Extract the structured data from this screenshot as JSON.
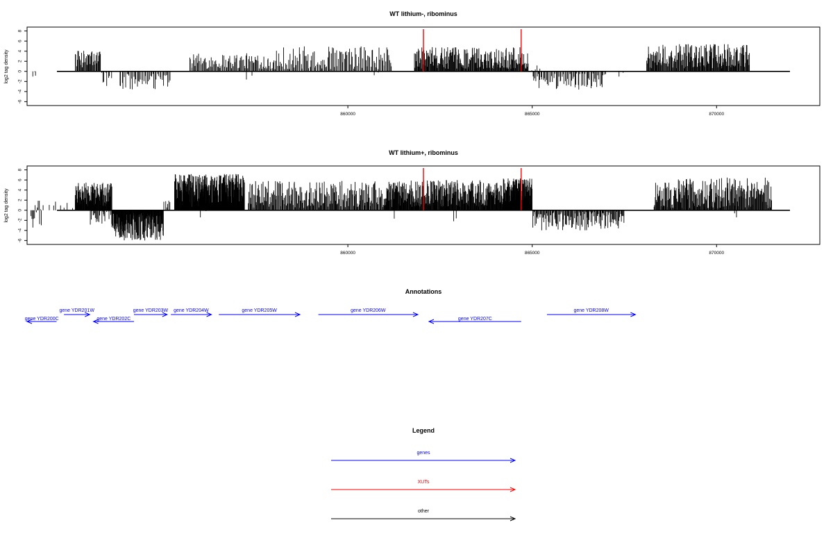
{
  "chart_data": [
    {
      "type": "bar",
      "title": "WT lithium-, ribominus",
      "xlabel": "",
      "ylabel": "log2 tag density",
      "xlim": [
        851300,
        872800
      ],
      "ylim": [
        -6.5,
        8.5
      ],
      "yticks": [
        -6,
        -4,
        -2,
        0,
        2,
        4,
        6,
        8
      ],
      "xticks": [
        860000,
        865000,
        870000
      ],
      "xtick_labels": [
        "860000",
        "865000",
        "870000"
      ],
      "marker_positions": [
        862050,
        864700
      ],
      "marker_color": "#ff0000",
      "bar_color": "#000000",
      "segments": [
        {
          "start": 851400,
          "end": 851550,
          "min": -1.8,
          "max": 0,
          "n": 4,
          "density": 0.5
        },
        {
          "start": 852600,
          "end": 853300,
          "min": 0.8,
          "max": 4.2,
          "n": 40,
          "density": 0.65
        },
        {
          "start": 853300,
          "end": 853600,
          "min": -3.8,
          "max": 0,
          "n": 8,
          "density": 0.6
        },
        {
          "start": 853800,
          "end": 855200,
          "min": -3.8,
          "max": -0.5,
          "n": 45,
          "density": 0.65
        },
        {
          "start": 855700,
          "end": 858000,
          "min": 0.5,
          "max": 3.6,
          "n": 95,
          "density": 0.6
        },
        {
          "start": 857000,
          "end": 857600,
          "min": -2.6,
          "max": 0,
          "n": 3,
          "density": 0.4
        },
        {
          "start": 858000,
          "end": 861200,
          "min": 0.4,
          "max": 5.0,
          "n": 120,
          "density": 0.55
        },
        {
          "start": 860600,
          "end": 861000,
          "min": -1.5,
          "max": 0,
          "n": 2,
          "density": 0.4
        },
        {
          "start": 861800,
          "end": 864900,
          "min": 0.5,
          "max": 4.8,
          "n": 230,
          "density": 0.6
        },
        {
          "start": 864900,
          "end": 865300,
          "min": 0.2,
          "max": 1.5,
          "n": 4,
          "density": 0.4
        },
        {
          "start": 865000,
          "end": 867000,
          "min": -3.6,
          "max": -0.4,
          "n": 70,
          "density": 0.6
        },
        {
          "start": 867300,
          "end": 867500,
          "min": -2.0,
          "max": 0,
          "n": 2,
          "density": 0.4
        },
        {
          "start": 868100,
          "end": 870900,
          "min": 0.6,
          "max": 5.4,
          "n": 190,
          "density": 0.6
        }
      ]
    },
    {
      "type": "bar",
      "title": "WT lithium+, ribominus",
      "xlabel": "",
      "ylabel": "log2 tag density",
      "xlim": [
        851300,
        872800
      ],
      "ylim": [
        -6.5,
        8.5
      ],
      "yticks": [
        -6,
        -4,
        -2,
        0,
        2,
        4,
        6,
        8
      ],
      "xticks": [
        860000,
        865000,
        870000
      ],
      "xtick_labels": [
        "860000",
        "865000",
        "870000"
      ],
      "marker_positions": [
        862050,
        864700
      ],
      "marker_color": "#ff0000",
      "bar_color": "#000000",
      "segments": [
        {
          "start": 851400,
          "end": 851700,
          "min": -3.8,
          "max": 2.0,
          "n": 14,
          "density": 0.6
        },
        {
          "start": 851700,
          "end": 852600,
          "min": 0.3,
          "max": 1.8,
          "n": 8,
          "density": 0.6
        },
        {
          "start": 852600,
          "end": 853600,
          "min": 0.8,
          "max": 5.5,
          "n": 120,
          "density": 0.7
        },
        {
          "start": 853000,
          "end": 853600,
          "min": -3.0,
          "max": 0,
          "n": 25,
          "density": 0.6
        },
        {
          "start": 853600,
          "end": 855000,
          "min": -6.0,
          "max": -0.5,
          "n": 170,
          "density": 0.75
        },
        {
          "start": 855000,
          "end": 855200,
          "min": 0.2,
          "max": 2.0,
          "n": 6,
          "density": 0.5
        },
        {
          "start": 855300,
          "end": 857200,
          "min": 0.5,
          "max": 7.2,
          "n": 330,
          "density": 0.75
        },
        {
          "start": 856000,
          "end": 856200,
          "min": -1.5,
          "max": 0,
          "n": 2,
          "density": 0.4
        },
        {
          "start": 857300,
          "end": 861000,
          "min": 0.4,
          "max": 5.8,
          "n": 220,
          "density": 0.6
        },
        {
          "start": 861000,
          "end": 864200,
          "min": 0.6,
          "max": 6.0,
          "n": 320,
          "density": 0.7
        },
        {
          "start": 861200,
          "end": 861400,
          "min": -2.0,
          "max": 0,
          "n": 2,
          "density": 0.4
        },
        {
          "start": 862800,
          "end": 863000,
          "min": -2.4,
          "max": 0,
          "n": 2,
          "density": 0.4
        },
        {
          "start": 864200,
          "end": 865000,
          "min": 0.8,
          "max": 6.3,
          "n": 140,
          "density": 0.8
        },
        {
          "start": 865000,
          "end": 867500,
          "min": -4.0,
          "max": -0.3,
          "n": 130,
          "density": 0.65
        },
        {
          "start": 868300,
          "end": 871500,
          "min": 0.4,
          "max": 6.5,
          "n": 230,
          "density": 0.6
        },
        {
          "start": 870400,
          "end": 870600,
          "min": -2.2,
          "max": 0,
          "n": 2,
          "density": 0.4
        }
      ]
    }
  ],
  "annotations": {
    "title": "Annotations",
    "xlim": [
      851300,
      872800
    ],
    "color": "#0000ff",
    "genes": [
      {
        "label": "gene YDR200C",
        "start": 851300,
        "end": 852100,
        "strand": "-",
        "row": "lower"
      },
      {
        "label": "gene YDR201W",
        "start": 852300,
        "end": 853000,
        "strand": "+",
        "row": "upper"
      },
      {
        "label": "gene YDR202C",
        "start": 853100,
        "end": 854200,
        "strand": "-",
        "row": "lower"
      },
      {
        "label": "gene YDR203W",
        "start": 854200,
        "end": 855100,
        "strand": "+",
        "row": "upper"
      },
      {
        "label": "gene YDR204W",
        "start": 855200,
        "end": 856300,
        "strand": "+",
        "row": "upper"
      },
      {
        "label": "gene YDR205W",
        "start": 856500,
        "end": 858700,
        "strand": "+",
        "row": "upper"
      },
      {
        "label": "gene YDR206W",
        "start": 859200,
        "end": 861900,
        "strand": "+",
        "row": "upper"
      },
      {
        "label": "gene YDR207C",
        "start": 862200,
        "end": 864700,
        "strand": "-",
        "row": "lower"
      },
      {
        "label": "gene YDR208W",
        "start": 865400,
        "end": 867800,
        "strand": "+",
        "row": "upper"
      }
    ]
  },
  "legend": {
    "title": "Legend",
    "items": [
      {
        "label": "genes",
        "color": "#0000ff"
      },
      {
        "label": "XUTs",
        "color": "#ff0000"
      },
      {
        "label": "other",
        "color": "#000000"
      }
    ]
  }
}
